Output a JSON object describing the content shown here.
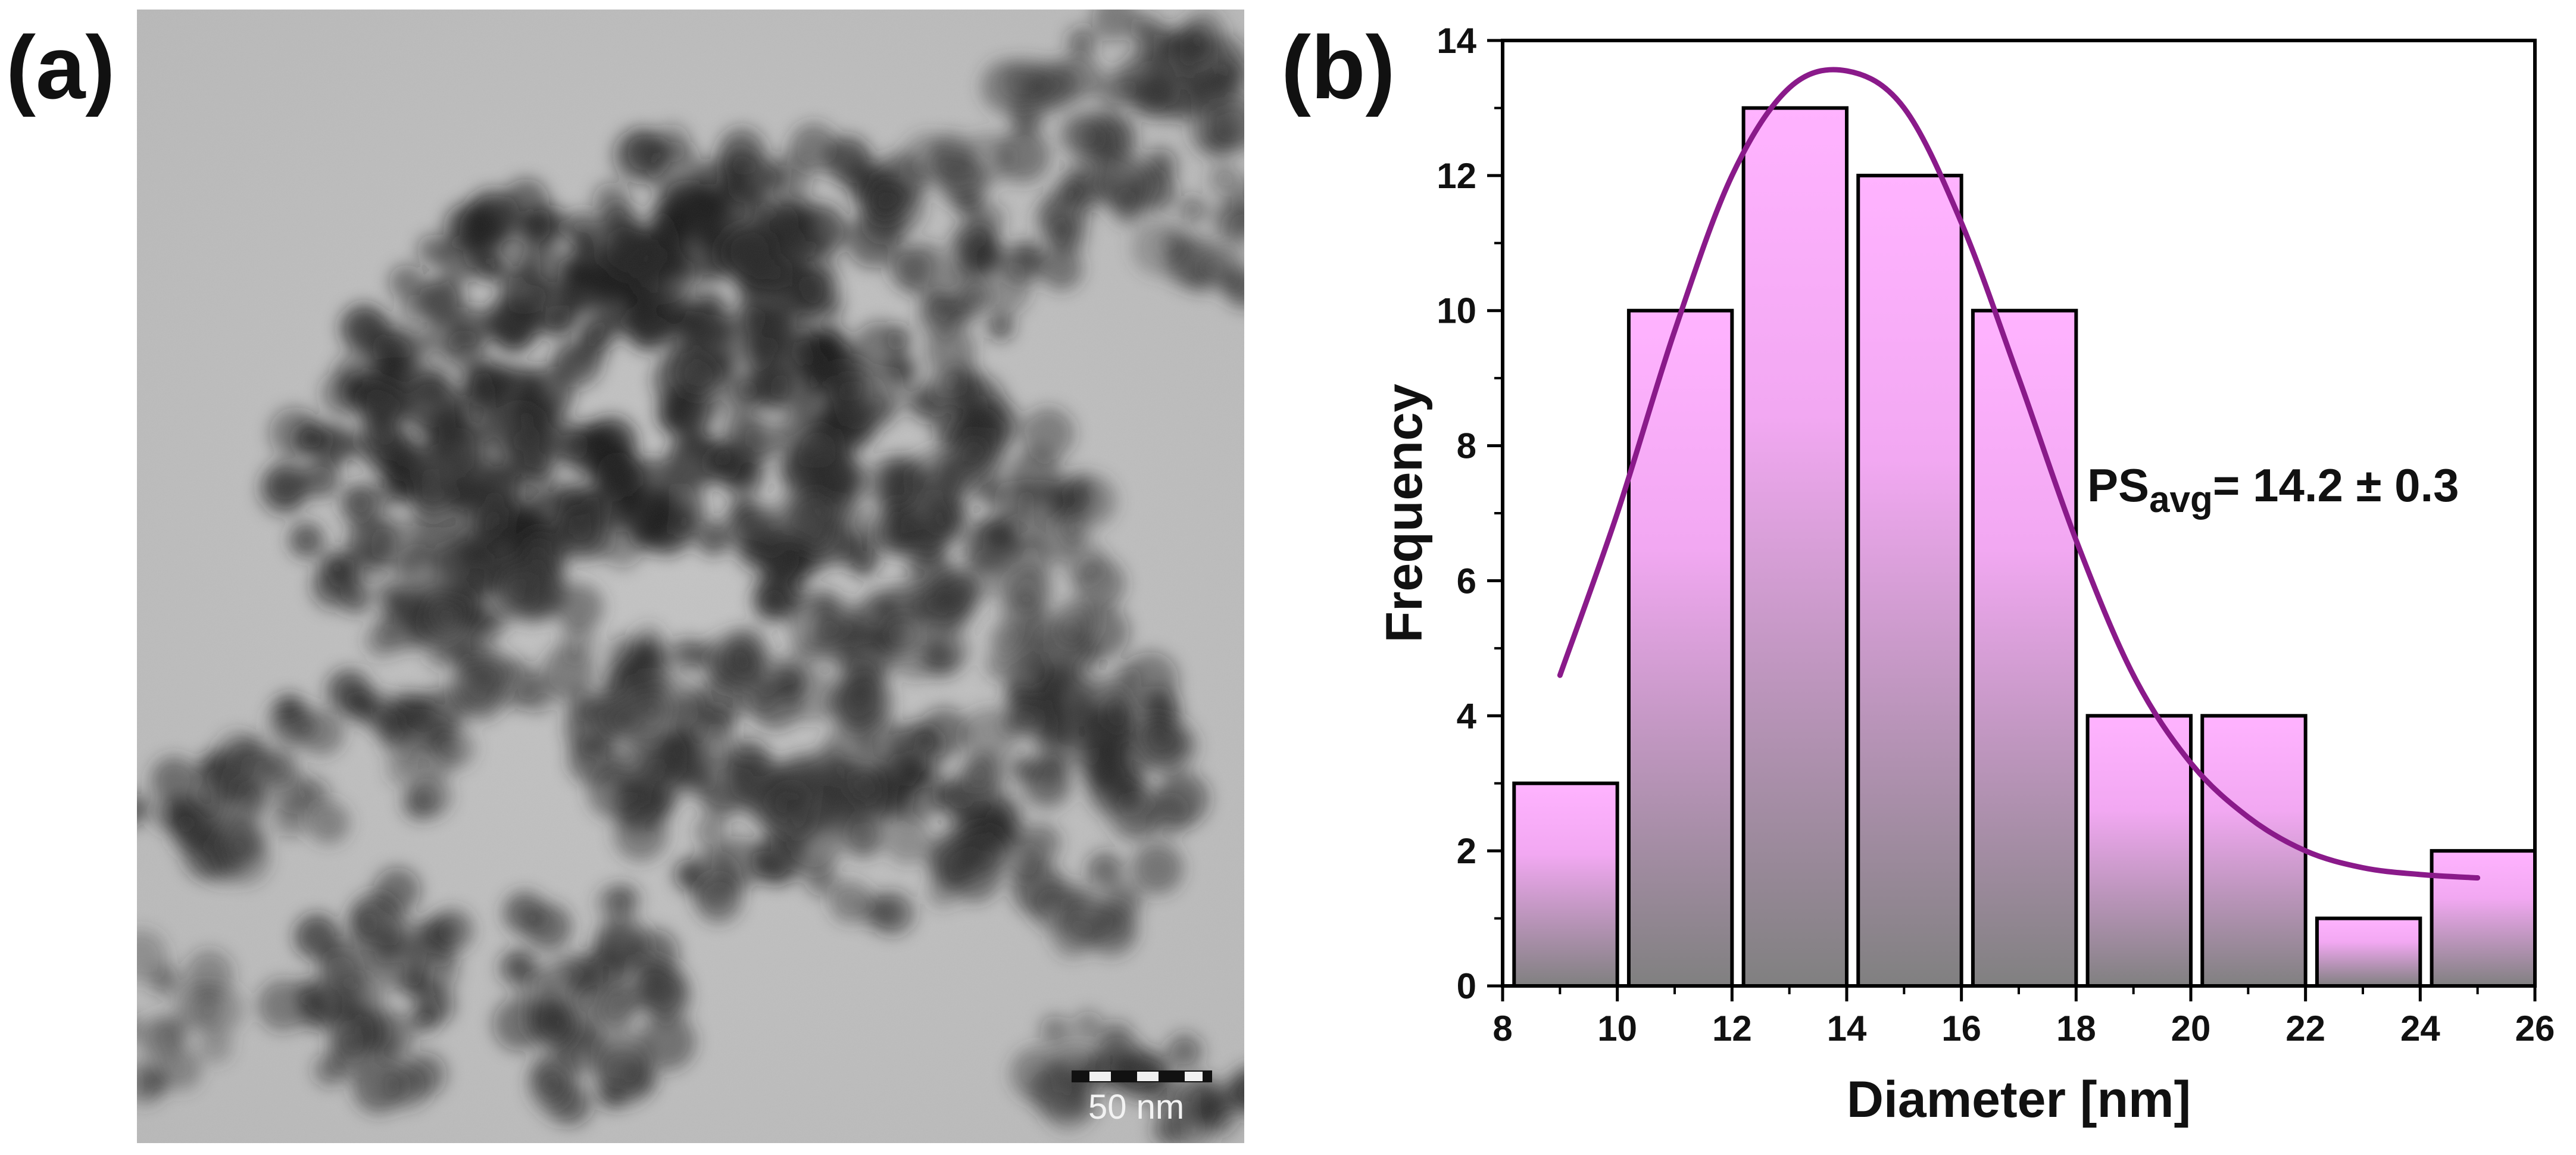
{
  "panels": {
    "a_label": "(a)",
    "b_label": "(b)"
  },
  "micrograph": {
    "scale_bar_label": "50 nm",
    "scale_bar_nm": 50
  },
  "chart_data": {
    "type": "bar",
    "title": "",
    "xlabel": "Diameter [nm]",
    "ylabel": "Frequency",
    "xlim": [
      8,
      26
    ],
    "ylim": [
      0,
      14
    ],
    "x_ticks": [
      8,
      10,
      12,
      14,
      16,
      18,
      20,
      22,
      24,
      26
    ],
    "y_ticks": [
      0,
      2,
      4,
      6,
      8,
      10,
      12,
      14
    ],
    "bins": [
      {
        "start": 8.2,
        "end": 10.0,
        "value": 3
      },
      {
        "start": 10.2,
        "end": 12.0,
        "value": 10
      },
      {
        "start": 12.2,
        "end": 14.0,
        "value": 13
      },
      {
        "start": 14.2,
        "end": 16.0,
        "value": 12
      },
      {
        "start": 16.2,
        "end": 18.0,
        "value": 10
      },
      {
        "start": 18.2,
        "end": 20.0,
        "value": 4
      },
      {
        "start": 20.2,
        "end": 22.0,
        "value": 4
      },
      {
        "start": 22.2,
        "end": 24.0,
        "value": 1
      },
      {
        "start": 24.2,
        "end": 26.0,
        "value": 2
      }
    ],
    "fit_curve": {
      "x": [
        9,
        10,
        11,
        12,
        13,
        14,
        15,
        16,
        17,
        18,
        19,
        20,
        21,
        22,
        23,
        24,
        25
      ],
      "y": [
        4.6,
        7.0,
        9.7,
        12.0,
        13.3,
        13.55,
        13.0,
        11.3,
        9.0,
        6.6,
        4.6,
        3.3,
        2.5,
        2.0,
        1.75,
        1.65,
        1.6
      ]
    },
    "annotation": {
      "main": "PS",
      "subscript": "avg",
      "rest": "= 14.2 ± 0.3"
    },
    "colors": {
      "bar_top": "#ffb3ff",
      "bar_bottom": "#808080",
      "curve": "#8a1a8a",
      "axis": "#000000"
    }
  }
}
